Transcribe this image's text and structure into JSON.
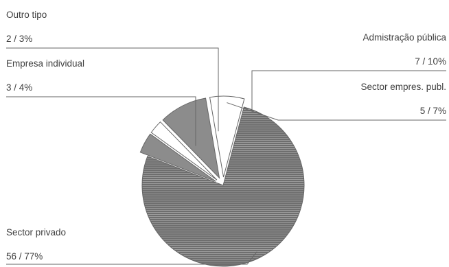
{
  "chart_data": {
    "type": "pie",
    "title": "",
    "slices": [
      {
        "name": "Sector privado",
        "value": 56,
        "percent": "77%",
        "label": "Sector privado",
        "value_label": "56 / 77%",
        "exploded": false
      },
      {
        "name": "Empresa individual",
        "value": 3,
        "percent": "4%",
        "label": "Empresa individual",
        "value_label": "3 / 4%",
        "exploded": true
      },
      {
        "name": "Outro tipo",
        "value": 2,
        "percent": "3%",
        "label": "Outro tipo",
        "value_label": "2 / 3%",
        "exploded": true
      },
      {
        "name": "Admistração pública",
        "value": 7,
        "percent": "10%",
        "label": "Admistração pública",
        "value_label": "7 / 10%",
        "exploded": true
      },
      {
        "name": "Sector empres. publ.",
        "value": 5,
        "percent": "7%",
        "label": "Sector empres. publ.",
        "value_label": "5 / 7%",
        "exploded": true
      }
    ],
    "colors": {
      "Sector privado": "#7d7d7d",
      "Empresa individual": "#8c8c8c",
      "Outro tipo": "#ffffff",
      "Admistração pública": "#8c8c8c",
      "Sector empres. publ.": "#ffffff"
    },
    "legend": "none",
    "label_style": "callout-lines"
  }
}
